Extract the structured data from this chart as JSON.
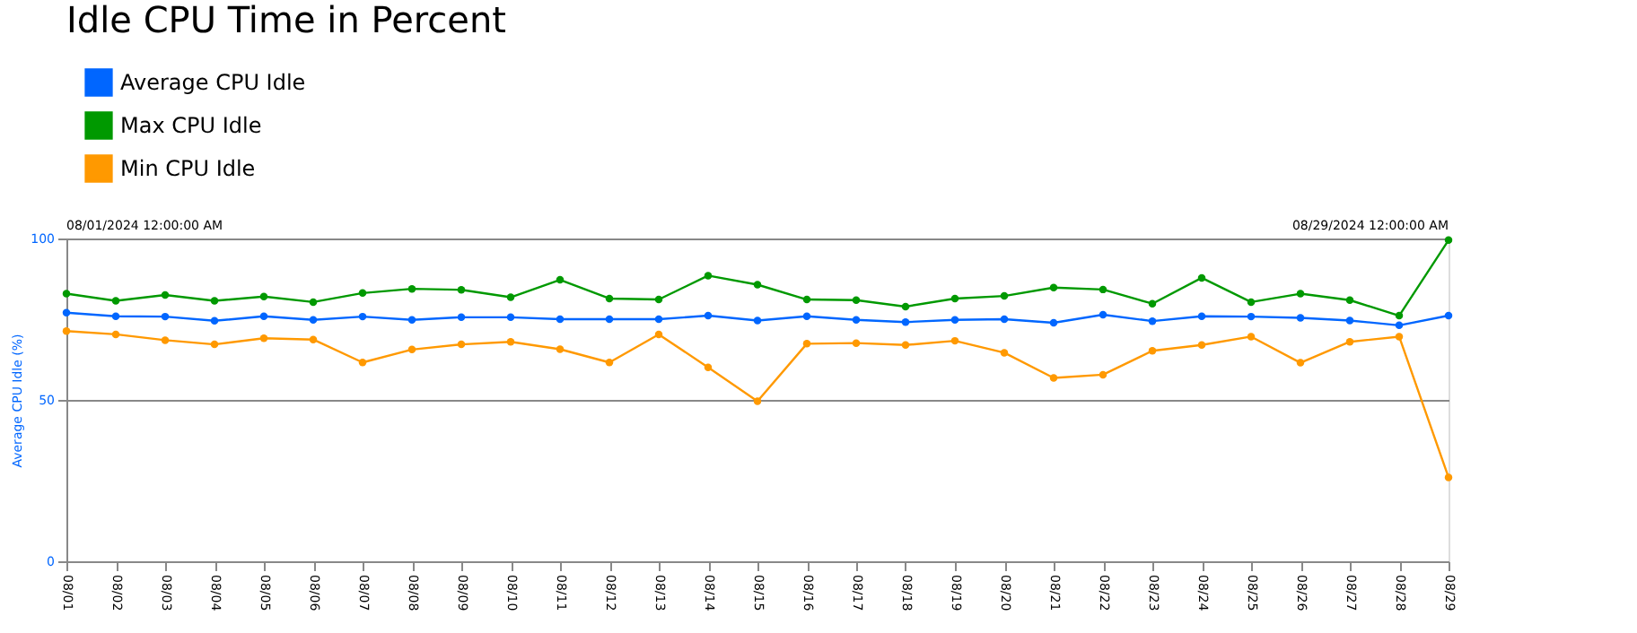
{
  "chart_data": {
    "type": "line",
    "title": "Idle CPU Time in Percent",
    "ylabel": "Average CPU Idle (%)",
    "annotations": [
      "08/01/2024 12:00:00 AM",
      "08/29/2024 12:00:00 AM"
    ],
    "categories": [
      "08/01",
      "08/02",
      "08/03",
      "08/04",
      "08/05",
      "08/06",
      "08/07",
      "08/08",
      "08/09",
      "08/10",
      "08/11",
      "08/12",
      "08/13",
      "08/14",
      "08/15",
      "08/16",
      "08/17",
      "08/18",
      "08/19",
      "08/20",
      "08/21",
      "08/22",
      "08/23",
      "08/24",
      "08/25",
      "08/26",
      "08/27",
      "08/28",
      "08/29"
    ],
    "series": [
      {
        "name": "Average CPU Idle",
        "color": "#0066ff",
        "values": [
          77.0,
          75.9,
          75.8,
          74.5,
          75.9,
          74.8,
          75.8,
          74.8,
          75.6,
          75.6,
          75.0,
          75.0,
          75.0,
          76.1,
          74.6,
          75.9,
          74.8,
          74.1,
          74.8,
          75.0,
          73.9,
          76.4,
          74.4,
          75.9,
          75.8,
          75.4,
          74.6,
          73.1,
          76.1
        ]
      },
      {
        "name": "Max CPU Idle",
        "color": "#009900",
        "values": [
          82.9,
          80.7,
          82.5,
          80.7,
          82.0,
          80.3,
          83.1,
          84.4,
          84.1,
          81.8,
          87.2,
          81.4,
          81.1,
          88.5,
          85.7,
          81.1,
          80.9,
          78.9,
          81.4,
          82.2,
          84.8,
          84.2,
          79.8,
          87.8,
          80.3,
          82.9,
          80.9,
          76.1,
          99.5
        ]
      },
      {
        "name": "Min CPU Idle",
        "color": "#ff9900",
        "values": [
          71.3,
          70.3,
          68.5,
          67.2,
          69.1,
          68.7,
          61.6,
          65.6,
          67.2,
          68.0,
          65.7,
          61.6,
          70.3,
          60.1,
          49.6,
          67.4,
          67.6,
          67.0,
          68.3,
          64.6,
          56.8,
          57.8,
          65.2,
          67.0,
          69.6,
          61.5,
          68.0,
          69.6,
          26.0
        ]
      }
    ],
    "ylim": [
      0,
      100
    ],
    "yticks": [
      0,
      50,
      100
    ],
    "grid": "y",
    "legend": "top",
    "marker": "circle",
    "line_style": "solid"
  }
}
